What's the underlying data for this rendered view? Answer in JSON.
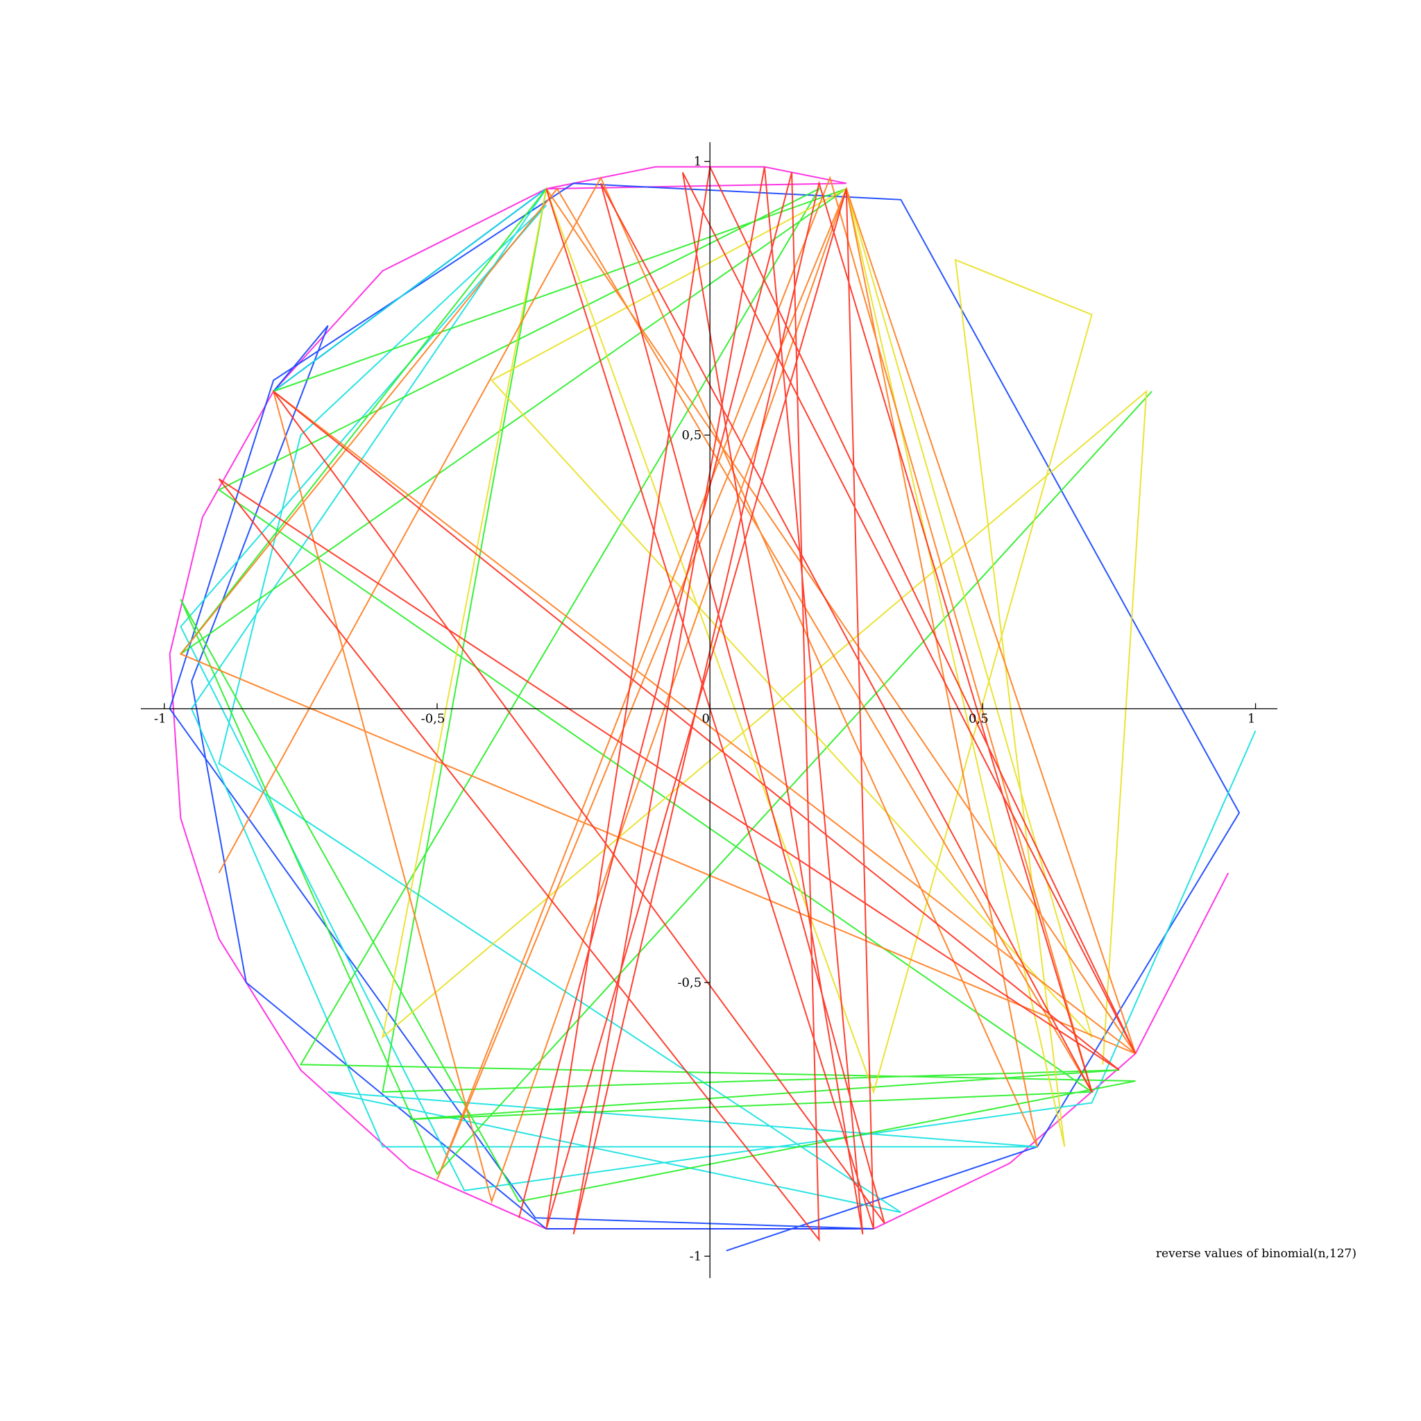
{
  "chart_data": {
    "type": "line",
    "title": "reverse values of binomial(n,127)",
    "xlim": [
      -1.043,
      1.04
    ],
    "ylim": [
      -1.04,
      1.035
    ],
    "xticks": [
      {
        "value": -1,
        "label": "-1"
      },
      {
        "value": -0.5,
        "label": "-0,5"
      },
      0,
      {
        "value": 0.5,
        "label": "0,5"
      },
      1
    ],
    "yticks": [
      {
        "value": -1,
        "label": "-1"
      },
      {
        "value": -0.5,
        "label": "-0,5"
      },
      {
        "value": 0.5,
        "label": "0,5"
      },
      1
    ],
    "grid": false,
    "series": [
      {
        "color": "#ff20e0",
        "x": [
          -0.3,
          -0.1,
          0.1,
          0.25,
          -0.3,
          -0.6,
          -0.8,
          -0.93,
          -0.99,
          -0.97,
          -0.9,
          -0.75,
          -0.55,
          -0.3,
          0.3,
          0.55,
          0.78,
          0.95
        ],
        "values": [
          0.95,
          0.99,
          0.99,
          0.96,
          0.95,
          0.8,
          0.58,
          0.35,
          0.1,
          -0.2,
          -0.42,
          -0.66,
          -0.84,
          -0.95,
          -0.95,
          -0.83,
          -0.63,
          -0.3
        ]
      },
      {
        "color": "#1040ff",
        "x": [
          -0.3,
          -0.8,
          -0.7,
          -0.95,
          -0.85,
          -0.3,
          0.3,
          -0.32,
          -0.99,
          -0.8,
          -0.25,
          0.35,
          0.97,
          0.6,
          0.03
        ],
        "values": [
          0.95,
          0.58,
          0.7,
          0.05,
          -0.5,
          -0.95,
          -0.95,
          -0.93,
          0.0,
          0.6,
          0.96,
          0.93,
          -0.19,
          -0.8,
          -0.99
        ]
      },
      {
        "color": "#10e0e0",
        "x": [
          -0.8,
          -0.3,
          -0.95,
          -0.6,
          0.6,
          -0.7,
          0.35,
          -0.9,
          -0.75,
          -0.3,
          -0.97,
          -0.45,
          0.7,
          1.0
        ],
        "values": [
          0.58,
          0.95,
          0.0,
          -0.8,
          -0.8,
          -0.7,
          -0.92,
          -0.1,
          0.5,
          0.92,
          0.15,
          -0.88,
          -0.72,
          -0.04
        ]
      },
      {
        "color": "#22ee22",
        "x": [
          -0.8,
          0.25,
          -0.97,
          -0.3,
          -0.6,
          0.75,
          -0.55,
          0.7,
          -0.9,
          0.2,
          -0.75,
          0.78,
          -0.35,
          -0.97,
          -0.5,
          0.81
        ],
        "values": [
          0.58,
          0.95,
          0.1,
          0.95,
          -0.7,
          -0.66,
          -0.75,
          -0.7,
          0.4,
          0.95,
          -0.65,
          -0.68,
          -0.9,
          0.2,
          -0.85,
          0.58
        ]
      },
      {
        "color": "#e8e020",
        "x": [
          0.25,
          0.7,
          -0.4,
          0.25,
          0.65,
          0.45,
          0.7,
          0.3,
          -0.3,
          -0.6,
          0.8,
          0.72
        ],
        "values": [
          0.95,
          -0.6,
          0.6,
          0.95,
          -0.8,
          0.82,
          0.72,
          -0.7,
          0.95,
          -0.6,
          0.58,
          -0.65
        ]
      },
      {
        "color": "#ff7a1a",
        "x": [
          -0.3,
          0.78,
          0.25,
          -0.5,
          0.22,
          0.7,
          -0.28,
          -0.97,
          0.78,
          -0.8,
          -0.4,
          0.25,
          0.6,
          -0.2,
          -0.9
        ],
        "values": [
          0.95,
          -0.63,
          0.95,
          -0.86,
          0.97,
          -0.7,
          0.95,
          0.1,
          -0.63,
          0.58,
          -0.9,
          0.95,
          -0.8,
          0.97,
          -0.3
        ]
      },
      {
        "color": "#ff2a1a",
        "x": [
          -0.3,
          0.3,
          0.25,
          -0.3,
          0.0,
          0.78,
          -0.05,
          0.28,
          0.1,
          -0.25,
          0.2,
          0.7,
          -0.2,
          0.32,
          -0.8,
          0.75,
          -0.9,
          0.2,
          0.15,
          -0.35
        ],
        "values": [
          0.95,
          -0.95,
          0.95,
          -0.95,
          0.99,
          -0.63,
          0.98,
          -0.96,
          0.99,
          -0.96,
          0.96,
          -0.7,
          0.96,
          -0.94,
          0.58,
          -0.66,
          0.42,
          -0.97,
          0.98,
          -0.93
        ]
      }
    ]
  }
}
